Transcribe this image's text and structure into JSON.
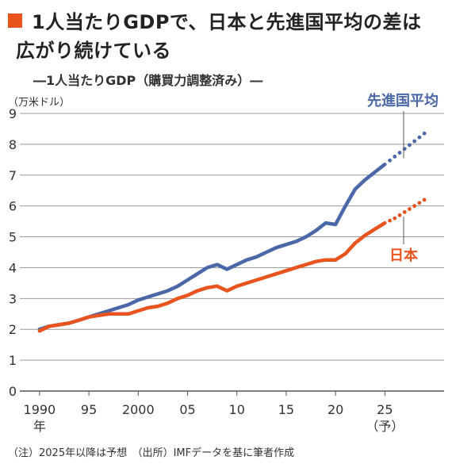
{
  "headline": {
    "line1": "1人当たりGDPで、日本と先進国平均の差は",
    "line2": "広がり続けている"
  },
  "subtitle": "―1人当たりGDP（購買力調整済み）―",
  "unit_label": "（万米ドル）",
  "note": "（注）2025年以降は予想　（出所）IMFデータを基に筆者作成",
  "colors": {
    "advanced": "#4a67a8",
    "japan": "#e8531e",
    "grid": "#999999",
    "accent": "#e8531e"
  },
  "chart_data": {
    "type": "line",
    "title": "1人当たりGDP（購買力調整済み）",
    "ylabel": "（万米ドル）",
    "ylim": [
      0,
      9
    ],
    "yticks": [
      0,
      1,
      2,
      3,
      4,
      5,
      6,
      7,
      8,
      9
    ],
    "xlim": [
      1988,
      2031
    ],
    "xticks": [
      {
        "x": 1990,
        "label": "1990",
        "sub": "年"
      },
      {
        "x": 1995,
        "label": "95"
      },
      {
        "x": 2000,
        "label": "2000"
      },
      {
        "x": 2005,
        "label": "05"
      },
      {
        "x": 2010,
        "label": "10"
      },
      {
        "x": 2015,
        "label": "15"
      },
      {
        "x": 2020,
        "label": "20"
      },
      {
        "x": 2025,
        "label": "25",
        "sub": "（予）"
      }
    ],
    "forecast_from": 2025,
    "series": [
      {
        "name": "先進国平均",
        "color": "#4a67a8",
        "x": [
          1990,
          1991,
          1992,
          1993,
          1994,
          1995,
          1996,
          1997,
          1998,
          1999,
          2000,
          2001,
          2002,
          2003,
          2004,
          2005,
          2006,
          2007,
          2008,
          2009,
          2010,
          2011,
          2012,
          2013,
          2014,
          2015,
          2016,
          2017,
          2018,
          2019,
          2020,
          2021,
          2022,
          2023,
          2024,
          2025,
          2026,
          2027,
          2028,
          2029
        ],
        "y": [
          2.0,
          2.1,
          2.15,
          2.2,
          2.3,
          2.4,
          2.5,
          2.6,
          2.7,
          2.8,
          2.95,
          3.05,
          3.15,
          3.25,
          3.4,
          3.6,
          3.8,
          4.0,
          4.1,
          3.95,
          4.1,
          4.25,
          4.35,
          4.5,
          4.65,
          4.75,
          4.85,
          5.0,
          5.2,
          5.45,
          5.4,
          6.0,
          6.55,
          6.85,
          7.1,
          7.35,
          7.6,
          7.85,
          8.1,
          8.35
        ]
      },
      {
        "name": "日本",
        "color": "#e8531e",
        "x": [
          1990,
          1991,
          1992,
          1993,
          1994,
          1995,
          1996,
          1997,
          1998,
          1999,
          2000,
          2001,
          2002,
          2003,
          2004,
          2005,
          2006,
          2007,
          2008,
          2009,
          2010,
          2011,
          2012,
          2013,
          2014,
          2015,
          2016,
          2017,
          2018,
          2019,
          2020,
          2021,
          2022,
          2023,
          2024,
          2025,
          2026,
          2027,
          2028,
          2029
        ],
        "y": [
          1.95,
          2.1,
          2.15,
          2.2,
          2.3,
          2.4,
          2.45,
          2.5,
          2.5,
          2.5,
          2.6,
          2.7,
          2.75,
          2.85,
          3.0,
          3.1,
          3.25,
          3.35,
          3.4,
          3.25,
          3.4,
          3.5,
          3.6,
          3.7,
          3.8,
          3.9,
          4.0,
          4.1,
          4.2,
          4.25,
          4.25,
          4.45,
          4.8,
          5.05,
          5.25,
          5.45,
          5.6,
          5.8,
          6.0,
          6.2
        ]
      }
    ],
    "labels": [
      {
        "text": "先進国平均",
        "series": 0
      },
      {
        "text": "日本",
        "series": 1
      }
    ]
  }
}
